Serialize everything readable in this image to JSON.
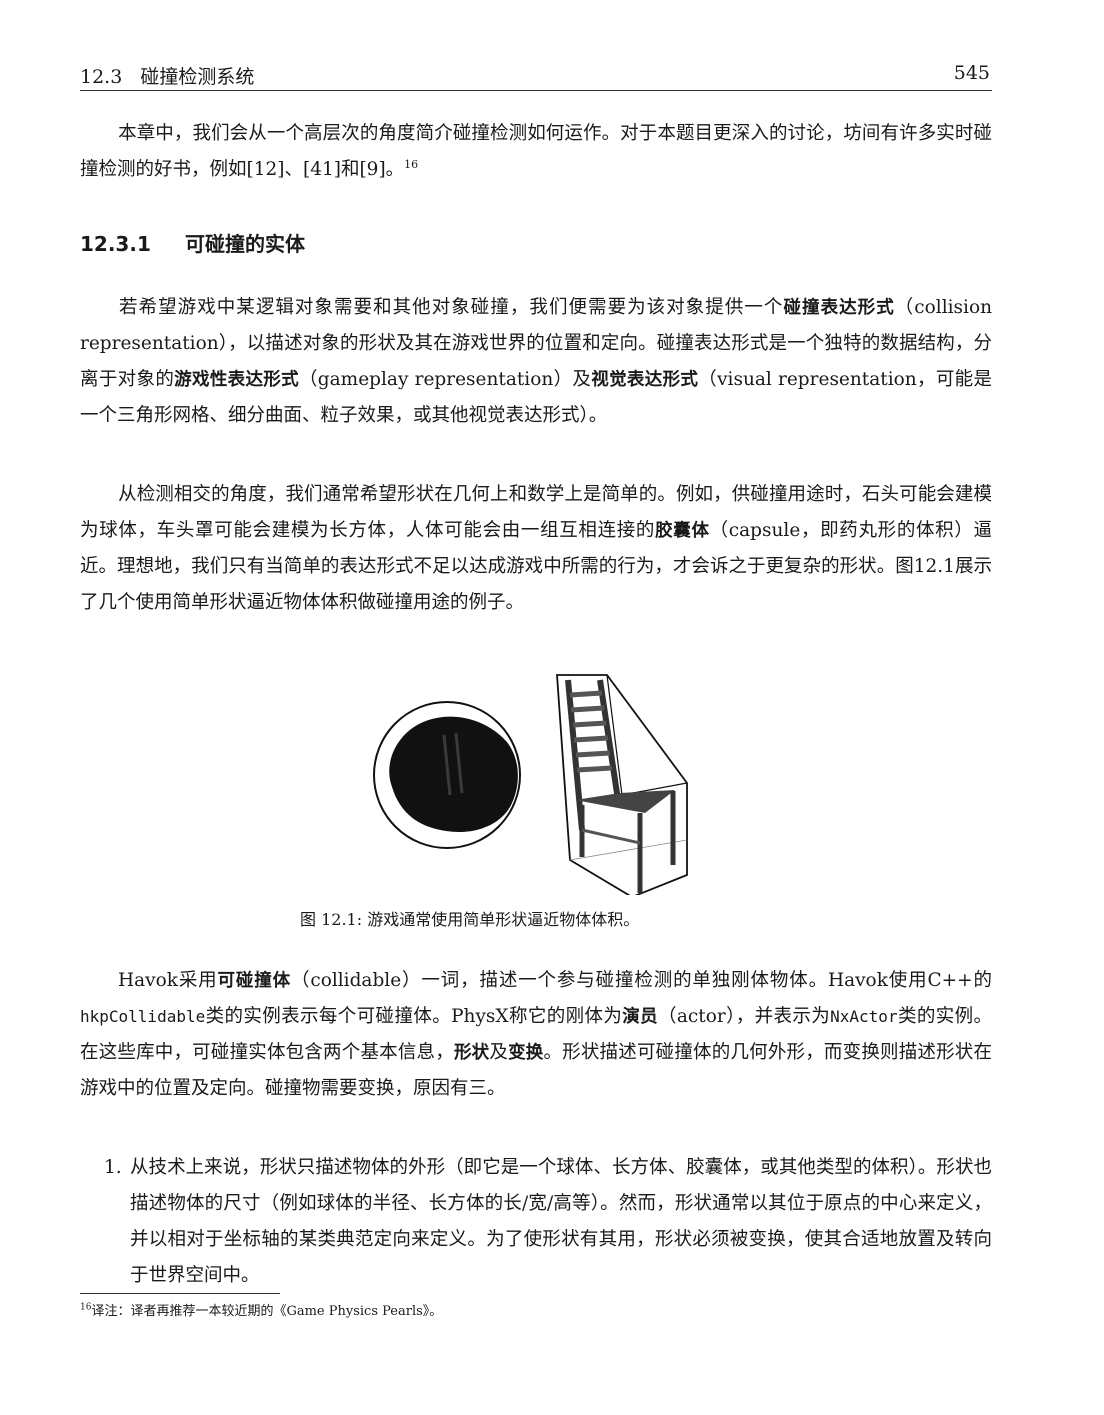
{
  "header": {
    "section": "12.3   碰撞检测系统",
    "page_number": "545"
  },
  "intro": {
    "text": "本章中，我们会从一个高层次的角度简介碰撞检测如何运作。对于本题目更深入的讨论，坊间有许多实时碰撞检测的好书，例如[12]、[41]和[9]。",
    "footnote_ref": "16"
  },
  "subsection": {
    "number": "12.3.1",
    "title": "可碰撞的实体"
  },
  "para1": {
    "t1": "若希望游戏中某逻辑对象需要和其他对象碰撞，我们便需要为该对象提供一个",
    "b1": "碰撞表达形式",
    "t2": "（collision representation），以描述对象的形状及其在游戏世界的位置和定向。碰撞表达形式是一个独特的数据结构，分离于对象的",
    "b2": "游戏性表达形式",
    "t3": "（gameplay representation）及",
    "b3": "视觉表达形式",
    "t4": "（visual representation，可能是一个三角形网格、细分曲面、粒子效果，或其他视觉表达形式）。"
  },
  "para2": {
    "t1": "从检测相交的角度，我们通常希望形状在几何上和数学上是简单的。例如，供碰撞用途时，石头可能会建模为球体，车头罩可能会建模为长方体，人体可能会由一组互相连接的",
    "b1": "胶囊体",
    "t2": "（capsule，即药丸形的体积）逼近。理想地，我们只有当简单的表达形式不足以达成游戏中所需的行为，才会诉之于更复杂的形状。图12.1展示了几个使用简单形状逼近物体体积做碰撞用途的例子。"
  },
  "figure": {
    "caption": "图 12.1: 游戏通常使用简单形状逼近物体体积。"
  },
  "para3": {
    "t1": "Havok采用",
    "b1": "可碰撞体",
    "t2": "（collidable）一词，描述一个参与碰撞检测的单独刚体物体。Havok使用C++的",
    "c1": "hkpCollidable",
    "t3": "类的实例表示每个可碰撞体。PhysX称它的刚体为",
    "b2": "演员",
    "t4": "（actor），并表示为",
    "c2": "NxActor",
    "t5": "类的实例。在这些库中，可碰撞实体包含两个基本信息，",
    "b3": "形状",
    "t6": "及",
    "b4": "变换",
    "t7": "。形状描述可碰撞体的几何外形，而变换则描述形状在游戏中的位置及定向。碰撞物需要变换，原因有三。"
  },
  "list": [
    {
      "marker": "1.",
      "text": "从技术上来说，形状只描述物体的外形（即它是一个球体、长方体、胶囊体，或其他类型的体积）。形状也描述物体的尺寸（例如球体的半径、长方体的长/宽/高等）。然而，形状通常以其位于原点的中心来定义，并以相对于坐标轴的某类典范定向来定义。为了使形状有其用，形状必须被变换，使其合适地放置及转向于世界空间中。"
    }
  ],
  "footnote": {
    "number": "16",
    "text": "译注：译者再推荐一本较近期的《Game Physics Pearls》。"
  }
}
